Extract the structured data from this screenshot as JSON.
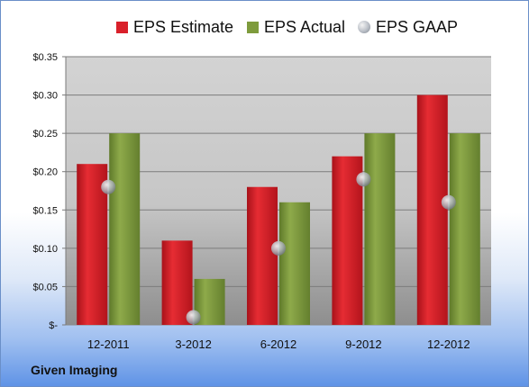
{
  "chart_data": {
    "type": "bar",
    "categories": [
      "12-2011",
      "3-2012",
      "6-2012",
      "9-2012",
      "12-2012"
    ],
    "series": [
      {
        "name": "EPS Estimate",
        "kind": "bar",
        "values": [
          0.21,
          0.11,
          0.18,
          0.22,
          0.3
        ],
        "color": "#d9202a"
      },
      {
        "name": "EPS Actual",
        "kind": "bar",
        "values": [
          0.25,
          0.06,
          0.16,
          0.25,
          0.25
        ],
        "color": "#7e9b3c"
      },
      {
        "name": "EPS GAAP",
        "kind": "marker",
        "values": [
          0.18,
          0.01,
          0.1,
          0.19,
          0.16
        ],
        "color": "#aab0b8"
      }
    ],
    "y_ticks": [
      {
        "value": 0,
        "label": "$-"
      },
      {
        "value": 0.05,
        "label": "$0.05"
      },
      {
        "value": 0.1,
        "label": "$0.10"
      },
      {
        "value": 0.15,
        "label": "$0.15"
      },
      {
        "value": 0.2,
        "label": "$0.20"
      },
      {
        "value": 0.25,
        "label": "$0.25"
      },
      {
        "value": 0.3,
        "label": "$0.30"
      },
      {
        "value": 0.35,
        "label": "$0.35"
      }
    ],
    "ylim": [
      0,
      0.35
    ],
    "grid": true,
    "legend_position": "top"
  },
  "company_label": "Given Imaging"
}
